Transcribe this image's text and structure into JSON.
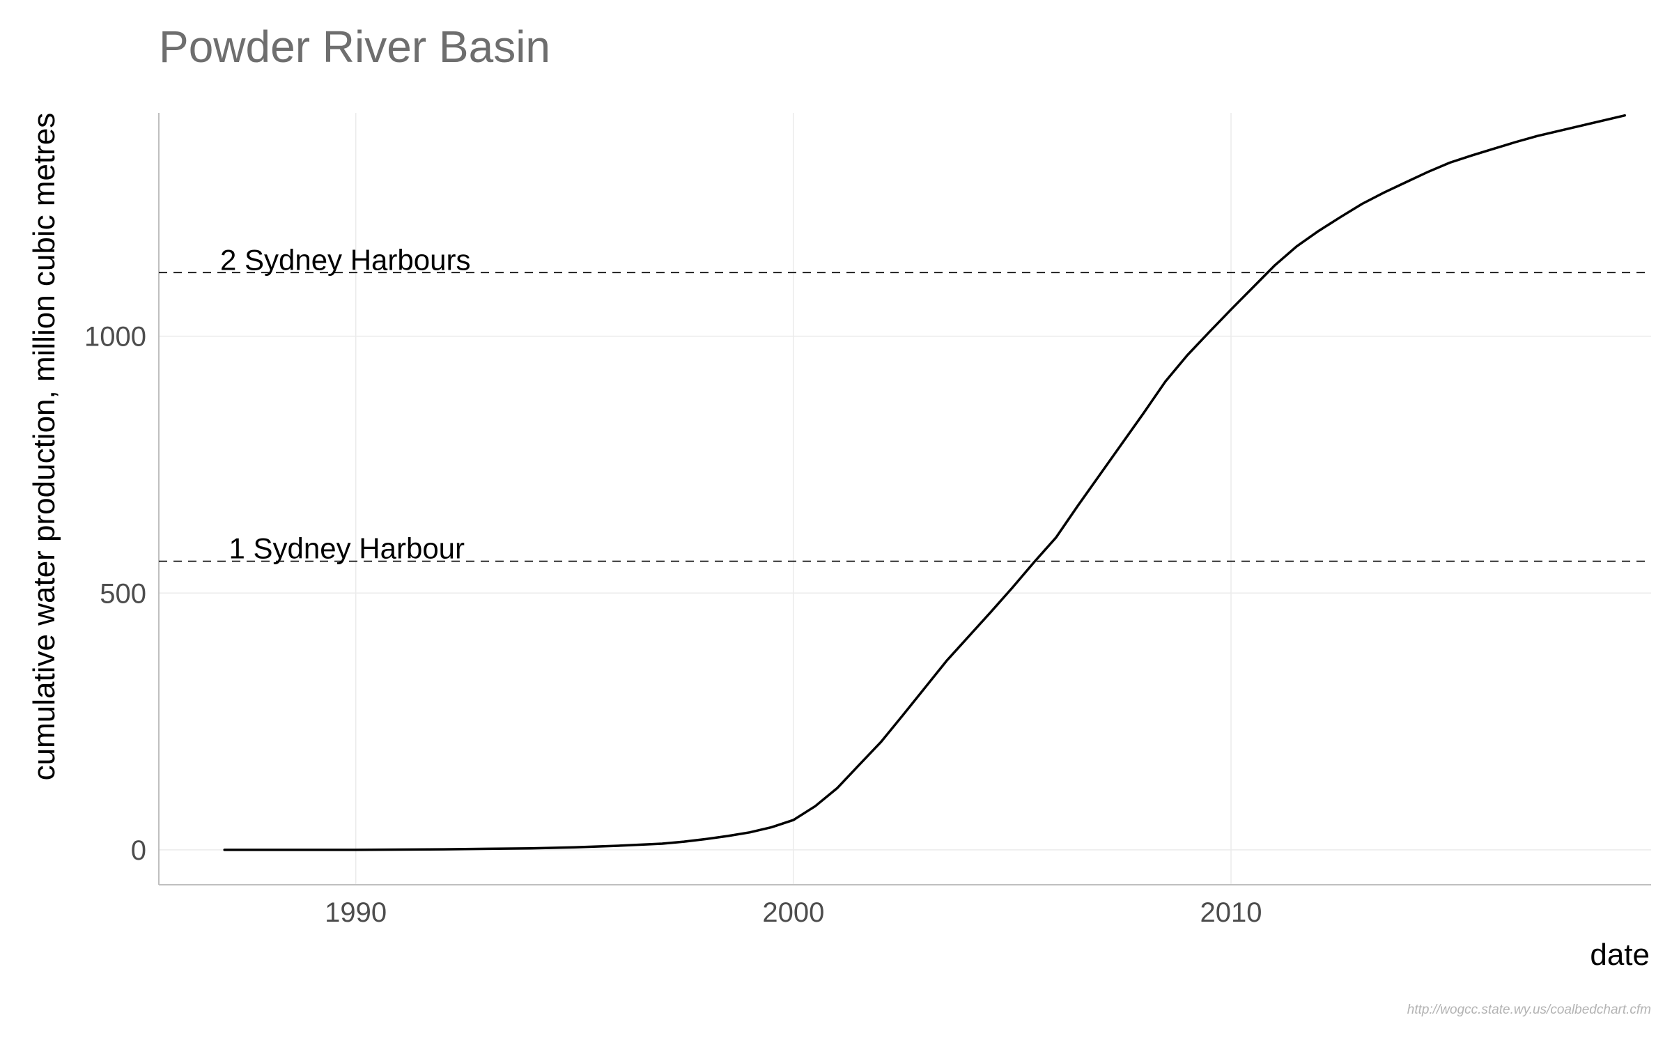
{
  "chart_data": {
    "type": "line",
    "title": "Powder River Basin",
    "xlabel": "date",
    "ylabel": "cumulative water production, million cubic metres",
    "caption": "http://wogcc.state.wy.us/coalbedchart.cfm",
    "xlim": [
      1985.5,
      2019.6
    ],
    "ylim": [
      -68,
      1435
    ],
    "x_ticks": [
      1990,
      2000,
      2010
    ],
    "y_ticks": [
      0,
      500,
      1000
    ],
    "grid": true,
    "colors": {
      "line": "#000000",
      "grid": "#ebebeb",
      "title": "#6e6e6e",
      "axis": "#bfbfbf"
    },
    "reference_lines": [
      {
        "label": "1 Sydney Harbour",
        "y": 562,
        "label_x": 1987.1
      },
      {
        "label": "2 Sydney Harbours",
        "y": 1124,
        "label_x": 1986.9
      }
    ],
    "series": [
      {
        "x": [
          1987.0,
          1988,
          1989,
          1990,
          1991,
          1992,
          1993,
          1994,
          1995,
          1996,
          1997,
          1997.5,
          1998,
          1998.5,
          1999,
          1999.5,
          2000,
          2000.5,
          2001,
          2001.5,
          2002,
          2002.5,
          2003,
          2003.5,
          2004,
          2004.5,
          2005,
          2005.5,
          2006,
          2006.5,
          2007,
          2007.5,
          2008,
          2008.5,
          2009,
          2009.5,
          2010,
          2010.5,
          2011,
          2011.5,
          2012,
          2012.5,
          2013,
          2013.5,
          2014,
          2014.5,
          2015,
          2015.5,
          2016,
          2016.5,
          2017,
          2017.5,
          2018,
          2018.5,
          2019.0
        ],
        "y": [
          0,
          0,
          0,
          0,
          0.5,
          1,
          2,
          3,
          5,
          8,
          12,
          16,
          21,
          27,
          34,
          44,
          58,
          85,
          120,
          165,
          210,
          262,
          315,
          368,
          415,
          462,
          510,
          560,
          608,
          670,
          730,
          790,
          850,
          912,
          963,
          1008,
          1052,
          1095,
          1138,
          1175,
          1205,
          1232,
          1258,
          1280,
          1300,
          1320,
          1338,
          1352,
          1365,
          1378,
          1390,
          1400,
          1410,
          1420,
          1430
        ]
      }
    ]
  }
}
